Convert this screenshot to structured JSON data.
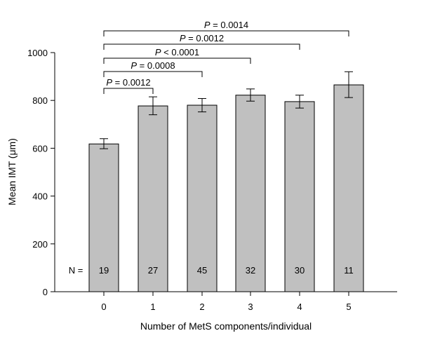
{
  "chart_data": {
    "type": "bar",
    "categories": [
      "0",
      "1",
      "2",
      "3",
      "4",
      "5"
    ],
    "values": [
      618,
      777,
      780,
      822,
      795,
      865
    ],
    "error_low": [
      598,
      740,
      752,
      797,
      768,
      812
    ],
    "error_high": [
      640,
      815,
      808,
      848,
      822,
      920
    ],
    "counts": [
      "19",
      "27",
      "45",
      "32",
      "30",
      "11"
    ],
    "count_prefix": "N =",
    "xlabel": "Number of MetS components/individual",
    "ylabel": "Mean IMT (μm)",
    "ylim": [
      0,
      1000
    ],
    "yticks": [
      0,
      200,
      400,
      600,
      800,
      1000
    ],
    "bar_color": "#c0c0c0",
    "comparisons": [
      {
        "from": "0",
        "to": "1",
        "p": "P",
        "label": " = 0.0012"
      },
      {
        "from": "0",
        "to": "2",
        "p": "P",
        "label": " = 0.0008"
      },
      {
        "from": "0",
        "to": "3",
        "p": "P",
        "label": " < 0.0001"
      },
      {
        "from": "0",
        "to": "4",
        "p": "P",
        "label": " = 0.0012"
      },
      {
        "from": "0",
        "to": "5",
        "p": "P",
        "label": " = 0.0014"
      }
    ]
  }
}
